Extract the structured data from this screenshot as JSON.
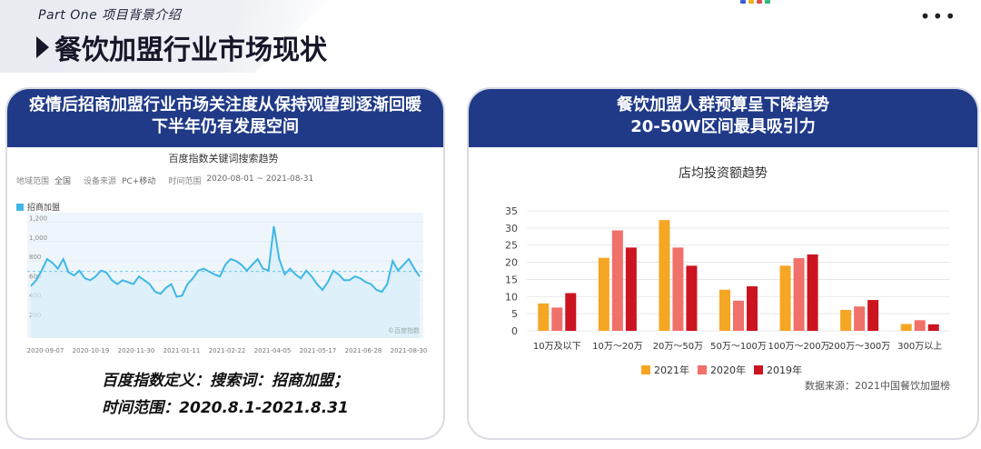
{
  "header": {
    "section_label": "Part One 项目背景介绍",
    "title": "餐饮加盟行业市场现状"
  },
  "left_card": {
    "banner_line1": "疫情后招商加盟行业市场关注度从保持观望到逐渐回暖",
    "banner_line2": "下半年仍有发展空间",
    "baidu_title": "百度指数关键词搜索趋势",
    "meta": {
      "region_key": "地域范围",
      "region_val": "全国",
      "device_key": "设备来源",
      "device_val": "PC+移动",
      "time_key": "时间范围",
      "time_val": "2020-08-01 ~ 2021-08-31"
    },
    "legend": "招商加盟",
    "watermark": "©百度指数",
    "definition_line1": "百度指数定义：搜索词：招商加盟；",
    "definition_line2": "时间范围：2020.8.1-2021.8.31"
  },
  "right_card": {
    "banner_line1": "餐饮加盟人群预算呈下降趋势",
    "banner_line2": "20-50W区间最具吸引力",
    "source": "数据来源：2021中国餐饮加盟榜"
  },
  "colors": {
    "banner": "#203a88",
    "line": "#3fb7e6",
    "s2021": "#f5a623",
    "s2020": "#f0706a",
    "s2019": "#cc1420"
  },
  "chart_data": [
    {
      "type": "line",
      "title": "百度指数关键词搜索趋势",
      "x_ticks": [
        "2020-09-07",
        "2020-10-19",
        "2020-11-30",
        "2021-01-11",
        "2021-02-22",
        "2021-04-05",
        "2021-05-17",
        "2021-06-28",
        "2021-08-30"
      ],
      "y_ticks": [
        "200",
        "400",
        "600",
        "800",
        "1,000",
        "1,200"
      ],
      "ylim": [
        0,
        1300
      ],
      "average": 690,
      "series": [
        {
          "name": "招商加盟",
          "values": [
            540,
            600,
            700,
            820,
            780,
            720,
            820,
            680,
            650,
            700,
            620,
            600,
            640,
            700,
            680,
            600,
            560,
            600,
            580,
            560,
            640,
            600,
            560,
            480,
            460,
            520,
            560,
            430,
            440,
            560,
            620,
            700,
            720,
            690,
            660,
            640,
            760,
            820,
            800,
            760,
            700,
            760,
            820,
            720,
            700,
            1160,
            820,
            660,
            720,
            660,
            620,
            700,
            640,
            560,
            500,
            580,
            700,
            660,
            600,
            600,
            640,
            620,
            580,
            560,
            500,
            480,
            560,
            800,
            700,
            760,
            820,
            720,
            640
          ]
        }
      ]
    },
    {
      "type": "bar",
      "title": "店均投资额趋势",
      "categories": [
        "10万及以下",
        "10万～20万",
        "20万～50万",
        "50万～100万",
        "100万～200万",
        "200万～300万",
        "300万以上"
      ],
      "ylim": [
        0,
        35
      ],
      "y_ticks": [
        0,
        5,
        10,
        15,
        20,
        25,
        30,
        35
      ],
      "series": [
        {
          "name": "2021年",
          "values": [
            8,
            21.3,
            32.3,
            12,
            19,
            6.1,
            2
          ]
        },
        {
          "name": "2020年",
          "values": [
            6.8,
            29.3,
            24.3,
            8.8,
            21.2,
            7.1,
            3.1
          ]
        },
        {
          "name": "2019年",
          "values": [
            11,
            24.3,
            19,
            13,
            22.3,
            9,
            1.9
          ]
        }
      ]
    }
  ]
}
